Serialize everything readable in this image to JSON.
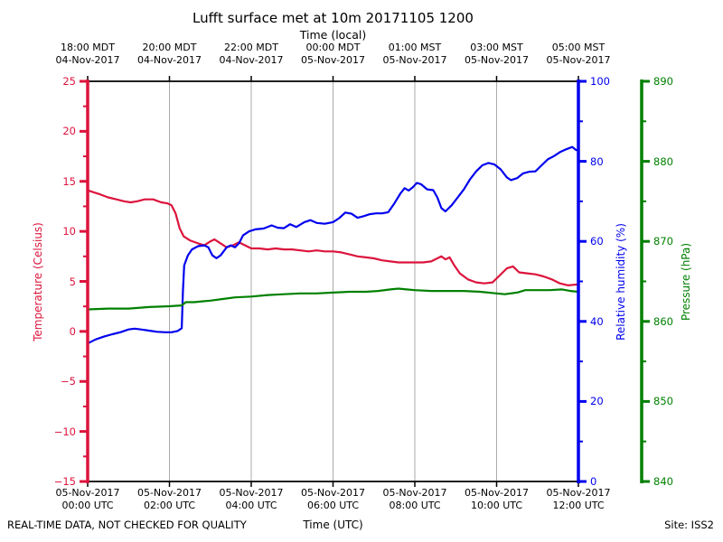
{
  "title": "Lufft surface met at 10m 20171105 1200",
  "footer": {
    "disclaimer": "REAL-TIME DATA, NOT CHECKED FOR QUALITY",
    "site": "Site: ISS2"
  },
  "colors": {
    "temperature": "#dc143c",
    "humidity": "#0000ee",
    "pressure": "#008000",
    "grid": "#aaaaaa",
    "frame": "#000000"
  },
  "chart_data": {
    "type": "line",
    "title": "Lufft surface met at 10m 20171105 1200",
    "top_xlabel": "Time (local)",
    "bottom_xlabel": "Time (UTC)",
    "x_unit": "hours UTC since 05-Nov-2017 00:00",
    "xlim": [
      0,
      12
    ],
    "grid_hours": [
      2,
      4,
      6,
      8,
      10
    ],
    "top_ticks": [
      {
        "hour": 0,
        "time": "18:00 MDT",
        "date": "04-Nov-2017"
      },
      {
        "hour": 2,
        "time": "20:00 MDT",
        "date": "04-Nov-2017"
      },
      {
        "hour": 4,
        "time": "22:00 MDT",
        "date": "04-Nov-2017"
      },
      {
        "hour": 6,
        "time": "00:00 MDT",
        "date": "05-Nov-2017"
      },
      {
        "hour": 8,
        "time": "01:00 MST",
        "date": "05-Nov-2017"
      },
      {
        "hour": 10,
        "time": "03:00 MST",
        "date": "05-Nov-2017"
      },
      {
        "hour": 12,
        "time": "05:00 MST",
        "date": "05-Nov-2017"
      }
    ],
    "bottom_ticks": [
      {
        "hour": 0,
        "date": "05-Nov-2017",
        "time": "00:00 UTC"
      },
      {
        "hour": 2,
        "date": "05-Nov-2017",
        "time": "02:00 UTC"
      },
      {
        "hour": 4,
        "date": "05-Nov-2017",
        "time": "04:00 UTC"
      },
      {
        "hour": 6,
        "date": "05-Nov-2017",
        "time": "06:00 UTC"
      },
      {
        "hour": 8,
        "date": "05-Nov-2017",
        "time": "08:00 UTC"
      },
      {
        "hour": 10,
        "date": "05-Nov-2017",
        "time": "10:00 UTC"
      },
      {
        "hour": 12,
        "date": "05-Nov-2017",
        "time": "12:00 UTC"
      }
    ],
    "axes": {
      "temperature": {
        "label": "Temperature (Celsius)",
        "side": "left",
        "color": "#dc143c",
        "ylim": [
          -15,
          25
        ],
        "minor_step": 2.5,
        "ticks": [
          {
            "v": 25,
            "label": "25"
          },
          {
            "v": 20,
            "label": "20"
          },
          {
            "v": 15,
            "label": "15"
          },
          {
            "v": 10,
            "label": "10"
          },
          {
            "v": 5,
            "label": "5"
          },
          {
            "v": 0,
            "label": "0"
          },
          {
            "v": -5,
            "label": "−5"
          },
          {
            "v": -10,
            "label": "−10"
          },
          {
            "v": -15,
            "label": "−15"
          }
        ]
      },
      "humidity": {
        "label": "Relative humidity (%)",
        "side": "right",
        "color": "#0000ee",
        "ylim": [
          0,
          100
        ],
        "minor_step": 10,
        "ticks": [
          {
            "v": 100,
            "label": "100"
          },
          {
            "v": 80,
            "label": "80"
          },
          {
            "v": 60,
            "label": "60"
          },
          {
            "v": 40,
            "label": "40"
          },
          {
            "v": 20,
            "label": "20"
          },
          {
            "v": 0,
            "label": "0"
          }
        ]
      },
      "pressure": {
        "label": "Pressure (hPa)",
        "side": "far-right",
        "color": "#008000",
        "ylim": [
          840,
          890
        ],
        "minor_step": 5,
        "ticks": [
          {
            "v": 890,
            "label": "890"
          },
          {
            "v": 880,
            "label": "880"
          },
          {
            "v": 870,
            "label": "870"
          },
          {
            "v": 860,
            "label": "860"
          },
          {
            "v": 850,
            "label": "850"
          },
          {
            "v": 840,
            "label": "840"
          }
        ]
      }
    },
    "series": [
      {
        "name": "temperature",
        "axis": "temperature",
        "color": "#dc143c",
        "points": [
          [
            0,
            14.1
          ],
          [
            0.15,
            13.9
          ],
          [
            0.3,
            13.7
          ],
          [
            0.5,
            13.4
          ],
          [
            0.7,
            13.2
          ],
          [
            0.9,
            13.0
          ],
          [
            1.05,
            12.9
          ],
          [
            1.2,
            13.0
          ],
          [
            1.4,
            13.2
          ],
          [
            1.6,
            13.2
          ],
          [
            1.8,
            12.9
          ],
          [
            1.95,
            12.8
          ],
          [
            2.05,
            12.6
          ],
          [
            2.15,
            11.8
          ],
          [
            2.25,
            10.3
          ],
          [
            2.35,
            9.5
          ],
          [
            2.5,
            9.1
          ],
          [
            2.7,
            8.8
          ],
          [
            2.85,
            8.6
          ],
          [
            3.0,
            9.0
          ],
          [
            3.1,
            9.2
          ],
          [
            3.25,
            8.8
          ],
          [
            3.4,
            8.4
          ],
          [
            3.55,
            8.6
          ],
          [
            3.7,
            8.9
          ],
          [
            3.85,
            8.6
          ],
          [
            4.0,
            8.3
          ],
          [
            4.2,
            8.3
          ],
          [
            4.4,
            8.2
          ],
          [
            4.6,
            8.3
          ],
          [
            4.8,
            8.2
          ],
          [
            5.0,
            8.2
          ],
          [
            5.2,
            8.1
          ],
          [
            5.4,
            8.0
          ],
          [
            5.6,
            8.1
          ],
          [
            5.8,
            8.0
          ],
          [
            6.0,
            8.0
          ],
          [
            6.2,
            7.9
          ],
          [
            6.4,
            7.7
          ],
          [
            6.6,
            7.5
          ],
          [
            6.8,
            7.4
          ],
          [
            7.0,
            7.3
          ],
          [
            7.2,
            7.1
          ],
          [
            7.4,
            7.0
          ],
          [
            7.6,
            6.9
          ],
          [
            7.8,
            6.9
          ],
          [
            8.0,
            6.9
          ],
          [
            8.2,
            6.9
          ],
          [
            8.4,
            7.0
          ],
          [
            8.5,
            7.2
          ],
          [
            8.65,
            7.5
          ],
          [
            8.75,
            7.2
          ],
          [
            8.85,
            7.4
          ],
          [
            8.95,
            6.7
          ],
          [
            9.1,
            5.8
          ],
          [
            9.3,
            5.2
          ],
          [
            9.5,
            4.9
          ],
          [
            9.7,
            4.8
          ],
          [
            9.9,
            4.9
          ],
          [
            10.05,
            5.5
          ],
          [
            10.25,
            6.3
          ],
          [
            10.4,
            6.5
          ],
          [
            10.55,
            5.9
          ],
          [
            10.75,
            5.8
          ],
          [
            10.95,
            5.7
          ],
          [
            11.15,
            5.5
          ],
          [
            11.35,
            5.2
          ],
          [
            11.55,
            4.8
          ],
          [
            11.75,
            4.6
          ],
          [
            12.0,
            4.7
          ]
        ]
      },
      {
        "name": "relative_humidity",
        "axis": "humidity",
        "color": "#0000ee",
        "points": [
          [
            0,
            34.5
          ],
          [
            0.2,
            35.5
          ],
          [
            0.4,
            36.2
          ],
          [
            0.6,
            36.8
          ],
          [
            0.8,
            37.3
          ],
          [
            1.0,
            38.0
          ],
          [
            1.15,
            38.2
          ],
          [
            1.3,
            38.0
          ],
          [
            1.5,
            37.7
          ],
          [
            1.7,
            37.4
          ],
          [
            1.9,
            37.3
          ],
          [
            2.05,
            37.3
          ],
          [
            2.2,
            37.6
          ],
          [
            2.3,
            38.3
          ],
          [
            2.33,
            47.5
          ],
          [
            2.36,
            54.0
          ],
          [
            2.45,
            56.5
          ],
          [
            2.55,
            58.0
          ],
          [
            2.7,
            58.8
          ],
          [
            2.85,
            59.0
          ],
          [
            2.95,
            58.5
          ],
          [
            3.05,
            56.5
          ],
          [
            3.15,
            55.8
          ],
          [
            3.25,
            56.5
          ],
          [
            3.4,
            58.5
          ],
          [
            3.5,
            59.0
          ],
          [
            3.6,
            58.5
          ],
          [
            3.7,
            59.5
          ],
          [
            3.8,
            61.5
          ],
          [
            3.95,
            62.5
          ],
          [
            4.1,
            63.0
          ],
          [
            4.3,
            63.2
          ],
          [
            4.5,
            64.0
          ],
          [
            4.65,
            63.4
          ],
          [
            4.8,
            63.3
          ],
          [
            4.95,
            64.3
          ],
          [
            5.1,
            63.6
          ],
          [
            5.3,
            64.8
          ],
          [
            5.45,
            65.3
          ],
          [
            5.6,
            64.6
          ],
          [
            5.8,
            64.4
          ],
          [
            6.0,
            64.8
          ],
          [
            6.15,
            65.8
          ],
          [
            6.3,
            67.2
          ],
          [
            6.45,
            66.9
          ],
          [
            6.6,
            65.9
          ],
          [
            6.75,
            66.3
          ],
          [
            6.9,
            66.8
          ],
          [
            7.05,
            67.0
          ],
          [
            7.2,
            67.0
          ],
          [
            7.35,
            67.3
          ],
          [
            7.5,
            69.5
          ],
          [
            7.65,
            72.0
          ],
          [
            7.75,
            73.3
          ],
          [
            7.85,
            72.7
          ],
          [
            7.95,
            73.5
          ],
          [
            8.05,
            74.6
          ],
          [
            8.15,
            74.3
          ],
          [
            8.3,
            73.0
          ],
          [
            8.45,
            72.8
          ],
          [
            8.55,
            71.0
          ],
          [
            8.65,
            68.3
          ],
          [
            8.75,
            67.5
          ],
          [
            8.9,
            69.0
          ],
          [
            9.05,
            71.0
          ],
          [
            9.2,
            73.0
          ],
          [
            9.35,
            75.5
          ],
          [
            9.5,
            77.5
          ],
          [
            9.65,
            79.0
          ],
          [
            9.8,
            79.6
          ],
          [
            9.95,
            79.2
          ],
          [
            10.1,
            78.0
          ],
          [
            10.25,
            76.0
          ],
          [
            10.35,
            75.3
          ],
          [
            10.5,
            75.8
          ],
          [
            10.65,
            77.0
          ],
          [
            10.8,
            77.4
          ],
          [
            10.95,
            77.5
          ],
          [
            11.1,
            79.0
          ],
          [
            11.25,
            80.5
          ],
          [
            11.4,
            81.3
          ],
          [
            11.55,
            82.3
          ],
          [
            11.7,
            83.0
          ],
          [
            11.85,
            83.6
          ],
          [
            11.95,
            82.8
          ],
          [
            12.0,
            82.8
          ]
        ]
      },
      {
        "name": "pressure",
        "axis": "pressure",
        "color": "#008000",
        "points": [
          [
            0,
            861.5
          ],
          [
            0.5,
            861.6
          ],
          [
            1.0,
            861.6
          ],
          [
            1.5,
            861.8
          ],
          [
            2.0,
            861.9
          ],
          [
            2.3,
            862.0
          ],
          [
            2.4,
            862.4
          ],
          [
            2.6,
            862.4
          ],
          [
            2.8,
            862.5
          ],
          [
            3.0,
            862.6
          ],
          [
            3.3,
            862.8
          ],
          [
            3.6,
            863.0
          ],
          [
            4.0,
            863.1
          ],
          [
            4.4,
            863.3
          ],
          [
            4.8,
            863.4
          ],
          [
            5.2,
            863.5
          ],
          [
            5.6,
            863.5
          ],
          [
            6.0,
            863.6
          ],
          [
            6.4,
            863.7
          ],
          [
            6.8,
            863.7
          ],
          [
            7.1,
            863.8
          ],
          [
            7.4,
            864.0
          ],
          [
            7.6,
            864.1
          ],
          [
            7.8,
            864.0
          ],
          [
            8.0,
            863.9
          ],
          [
            8.4,
            863.8
          ],
          [
            8.8,
            863.8
          ],
          [
            9.2,
            863.8
          ],
          [
            9.6,
            863.7
          ],
          [
            10.0,
            863.5
          ],
          [
            10.2,
            863.4
          ],
          [
            10.5,
            863.6
          ],
          [
            10.7,
            863.9
          ],
          [
            11.0,
            863.9
          ],
          [
            11.3,
            863.9
          ],
          [
            11.6,
            864.0
          ],
          [
            11.8,
            863.8
          ],
          [
            12.0,
            863.7
          ]
        ]
      }
    ]
  }
}
